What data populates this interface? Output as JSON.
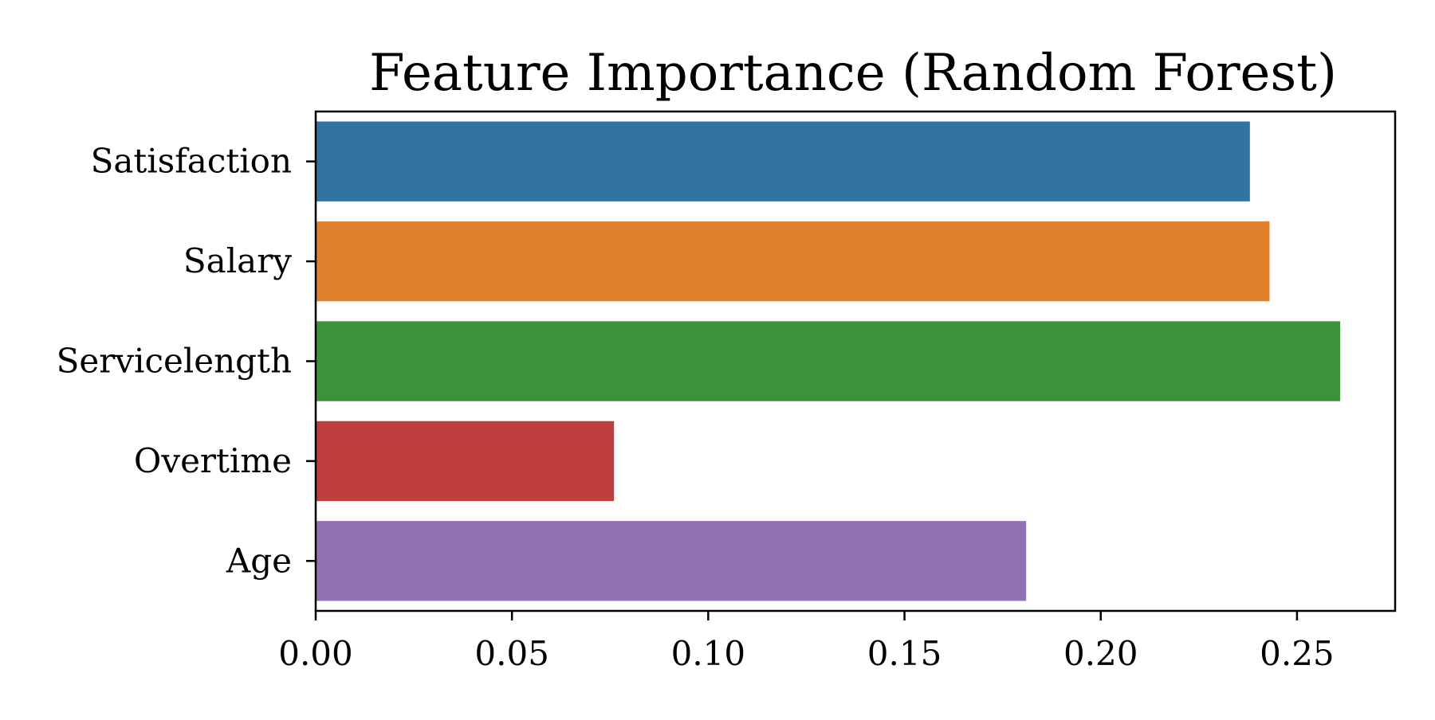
{
  "chart_data": {
    "type": "bar",
    "orientation": "horizontal",
    "title": "Feature Importance (Random Forest)",
    "xlabel": "",
    "ylabel": "",
    "categories": [
      "Satisfaction",
      "Salary",
      "Servicelength",
      "Overtime",
      "Age"
    ],
    "values": [
      0.238,
      0.243,
      0.261,
      0.076,
      0.181
    ],
    "colors": [
      "#3274a1",
      "#e1812c",
      "#3a923a",
      "#c03d3e",
      "#9372b2"
    ],
    "xlim": [
      0,
      0.275
    ],
    "xticks": [
      0.0,
      0.05,
      0.1,
      0.15,
      0.2,
      0.25
    ],
    "xtick_labels": [
      "0.00",
      "0.05",
      "0.10",
      "0.15",
      "0.20",
      "0.25"
    ],
    "grid": false,
    "legend": "none"
  }
}
